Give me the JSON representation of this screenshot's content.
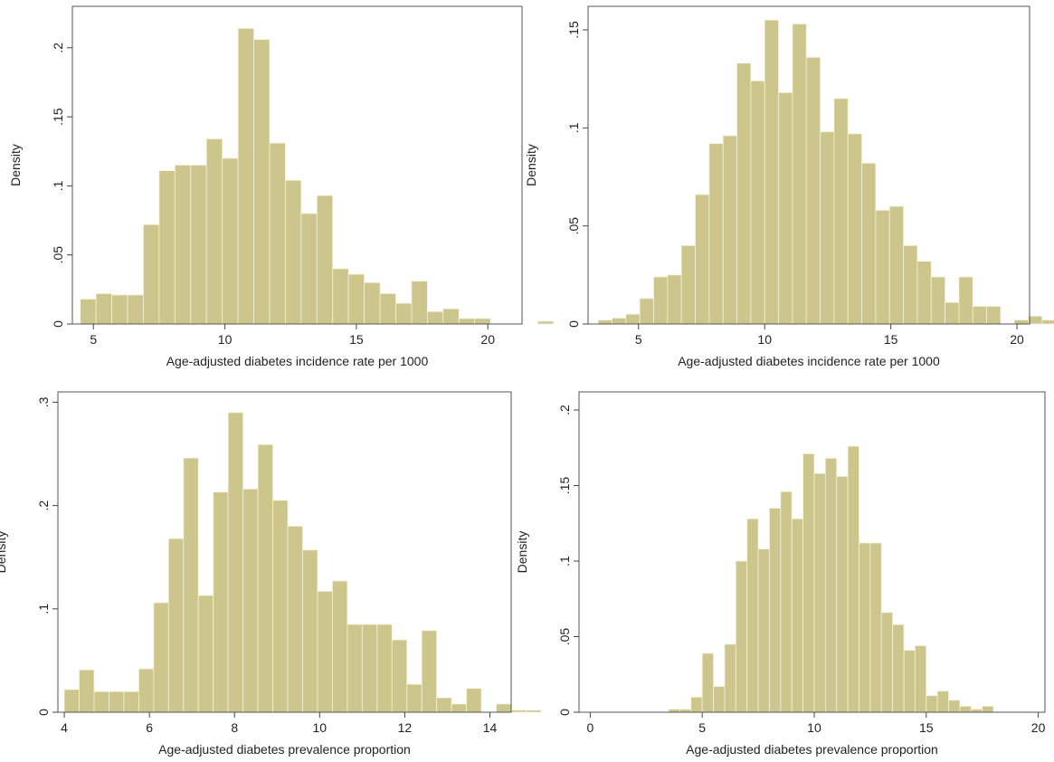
{
  "colors": {
    "bar_fill": "#cdc68c",
    "bar_stroke": "#f4f1dc",
    "frame": "#555555"
  },
  "chart_data": [
    {
      "type": "bar",
      "xlabel": "Age-adjusted diabetes incidence rate per 1000",
      "ylabel": "Density",
      "xlim": [
        4.2,
        21.3
      ],
      "ylim": [
        0,
        0.23
      ],
      "xticks": [
        5,
        10,
        15,
        20
      ],
      "xtick_labels": [
        "5",
        "10",
        "15",
        "20"
      ],
      "yticks": [
        0,
        0.05,
        0.1,
        0.15,
        0.2
      ],
      "ytick_labels": [
        "0",
        ".05",
        ".1",
        ".15",
        ".2"
      ],
      "bin_start": 4.5,
      "bin_width": 0.6,
      "values": [
        0.018,
        0.022,
        0.021,
        0.021,
        0.072,
        0.111,
        0.115,
        0.115,
        0.134,
        0.12,
        0.214,
        0.206,
        0.131,
        0.104,
        0.08,
        0.093,
        0.04,
        0.036,
        0.03,
        0.022,
        0.015,
        0.031,
        0.009,
        0.011,
        0.004,
        0.004,
        0,
        0,
        0,
        0.002
      ]
    },
    {
      "type": "bar",
      "xlabel": "Age-adjusted diabetes incidence rate per 1000",
      "ylabel": "Density",
      "xlim": [
        3.0,
        20.5
      ],
      "ylim": [
        0,
        0.162
      ],
      "xticks": [
        5,
        10,
        15,
        20
      ],
      "xtick_labels": [
        "5",
        "10",
        "15",
        "20"
      ],
      "yticks": [
        0,
        0.05,
        0.1,
        0.15
      ],
      "ytick_labels": [
        "0",
        ".05",
        ".1",
        ".15"
      ],
      "bin_start": 3.4,
      "bin_width": 0.55,
      "values": [
        0.002,
        0.003,
        0.005,
        0.013,
        0.024,
        0.025,
        0.04,
        0.066,
        0.092,
        0.096,
        0.133,
        0.124,
        0.155,
        0.118,
        0.153,
        0.136,
        0.098,
        0.115,
        0.097,
        0.082,
        0.058,
        0.06,
        0.04,
        0.032,
        0.024,
        0.011,
        0.024,
        0.009,
        0.009,
        0,
        0.002,
        0.004,
        0.002
      ]
    },
    {
      "type": "bar",
      "xlabel": "Age-adjusted diabetes prevalence proportion",
      "ylabel": "Density",
      "xlim": [
        3.85,
        14.5
      ],
      "ylim": [
        0,
        0.31
      ],
      "xticks": [
        4,
        6,
        8,
        10,
        12,
        14
      ],
      "xtick_labels": [
        "4",
        "6",
        "8",
        "10",
        "12",
        "14"
      ],
      "yticks": [
        0,
        0.1,
        0.2,
        0.3
      ],
      "ytick_labels": [
        "0",
        ".1",
        ".2",
        ".3"
      ],
      "bin_start": 4.0,
      "bin_width": 0.35,
      "values": [
        0.022,
        0.041,
        0.02,
        0.02,
        0.02,
        0.042,
        0.106,
        0.168,
        0.246,
        0.113,
        0.213,
        0.29,
        0.216,
        0.259,
        0.205,
        0.18,
        0.157,
        0.117,
        0.127,
        0.085,
        0.085,
        0.085,
        0.07,
        0.027,
        0.079,
        0.014,
        0.008,
        0.023,
        0,
        0.008,
        0.002,
        0.002
      ]
    },
    {
      "type": "bar",
      "xlabel": "Age-adjusted diabetes prevalence proportion",
      "ylabel": "Density",
      "xlim": [
        -0.5,
        20.3
      ],
      "ylim": [
        0,
        0.212
      ],
      "xticks": [
        0,
        5,
        10,
        15,
        20
      ],
      "xtick_labels": [
        "0",
        "5",
        "10",
        "15",
        "20"
      ],
      "yticks": [
        0,
        0.05,
        0.1,
        0.15,
        0.2
      ],
      "ytick_labels": [
        "0",
        ".05",
        ".1",
        ".15",
        ".2"
      ],
      "bin_start": 3.5,
      "bin_width": 0.5,
      "values": [
        0.002,
        0.002,
        0.01,
        0.039,
        0.017,
        0.045,
        0.1,
        0.128,
        0.108,
        0.135,
        0.146,
        0.128,
        0.171,
        0.158,
        0.168,
        0.156,
        0.176,
        0.112,
        0.112,
        0.066,
        0.058,
        0.041,
        0.044,
        0.011,
        0.014,
        0.008,
        0.004,
        0.002,
        0.004
      ]
    }
  ]
}
